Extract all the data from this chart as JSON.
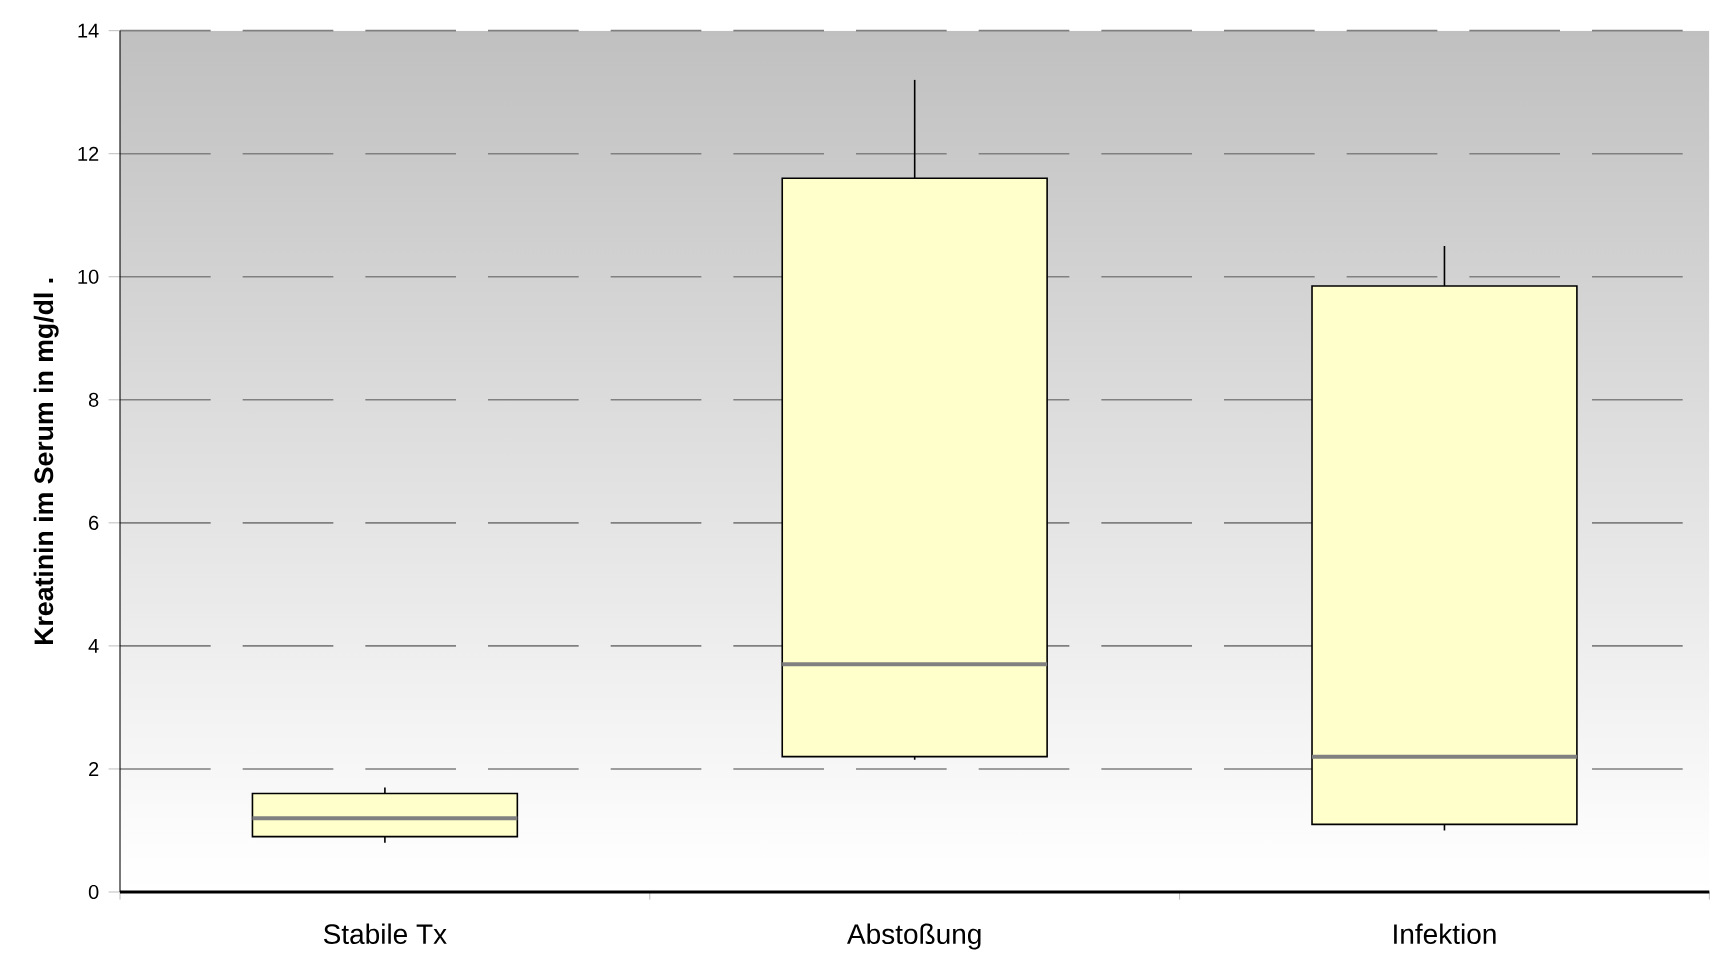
{
  "chart_data": {
    "type": "box",
    "categories": [
      "Stabile Tx",
      "Abstoßung",
      "Infektion"
    ],
    "ylabel": "Kreatinin im Serum in mg/dl .",
    "ylim": [
      0,
      14
    ],
    "yticks": [
      0,
      2,
      4,
      6,
      8,
      10,
      12,
      14
    ],
    "grid": "y",
    "series": [
      {
        "color": "#ffffcc",
        "boxes": [
          {
            "low": 0.8,
            "q1": 0.9,
            "median": 1.2,
            "q3": 1.6,
            "high": 1.7
          },
          {
            "low": 2.15,
            "q1": 2.2,
            "median": 3.7,
            "q3": 11.6,
            "high": 13.2
          },
          {
            "low": 1.0,
            "q1": 1.1,
            "median": 2.2,
            "q3": 9.85,
            "high": 10.5
          }
        ]
      }
    ]
  }
}
